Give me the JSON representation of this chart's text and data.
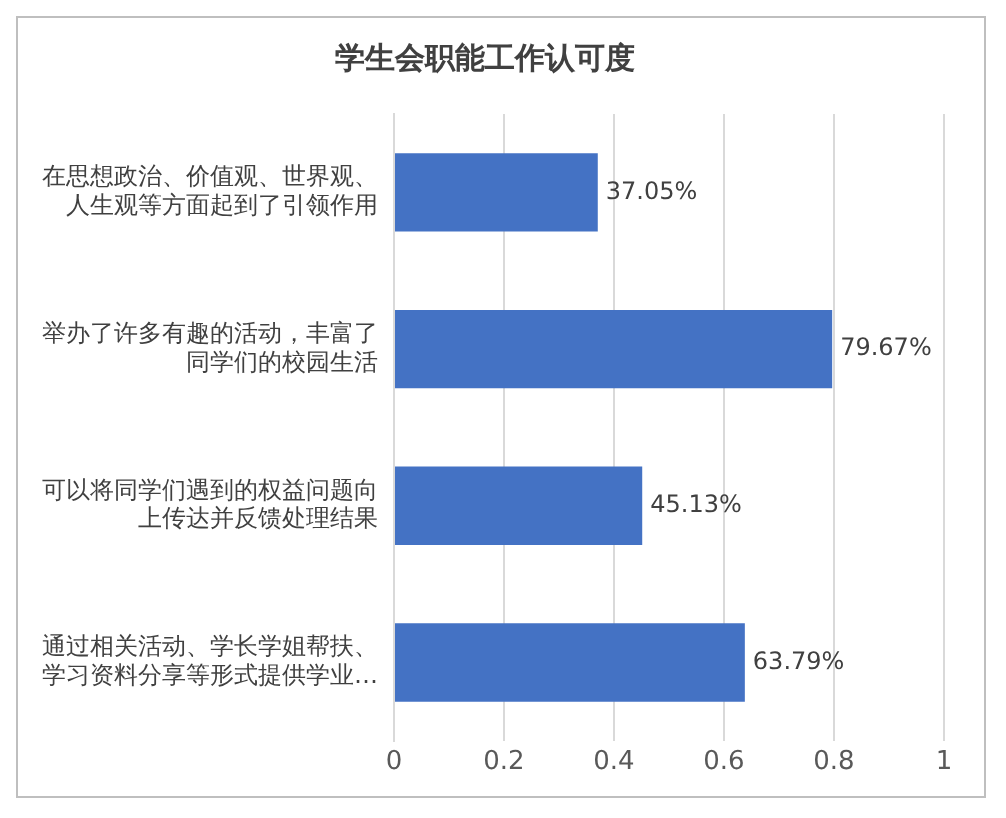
{
  "chart_data": {
    "type": "bar",
    "orientation": "horizontal",
    "title": "学生会职能工作认可度",
    "categories": [
      "在思想政治、价值观、世界观、人生观等方面起到了引领作用",
      "举办了许多有趣的活动，丰富了同学们的校园生活",
      "可以将同学们遇到的权益问题向上传达并反馈处理结果",
      "通过相关活动、学长学姐帮扶、学习资料分享等形式提供学业…"
    ],
    "values": [
      0.3705,
      0.7967,
      0.4513,
      0.6379
    ],
    "value_labels": [
      "37.05%",
      "79.67%",
      "45.13%",
      "63.79%"
    ],
    "color": "#4472c4",
    "xlim": [
      0,
      1
    ],
    "xticks": [
      0,
      0.2,
      0.4,
      0.6,
      0.8,
      1
    ],
    "grid": "x",
    "legend": false
  }
}
